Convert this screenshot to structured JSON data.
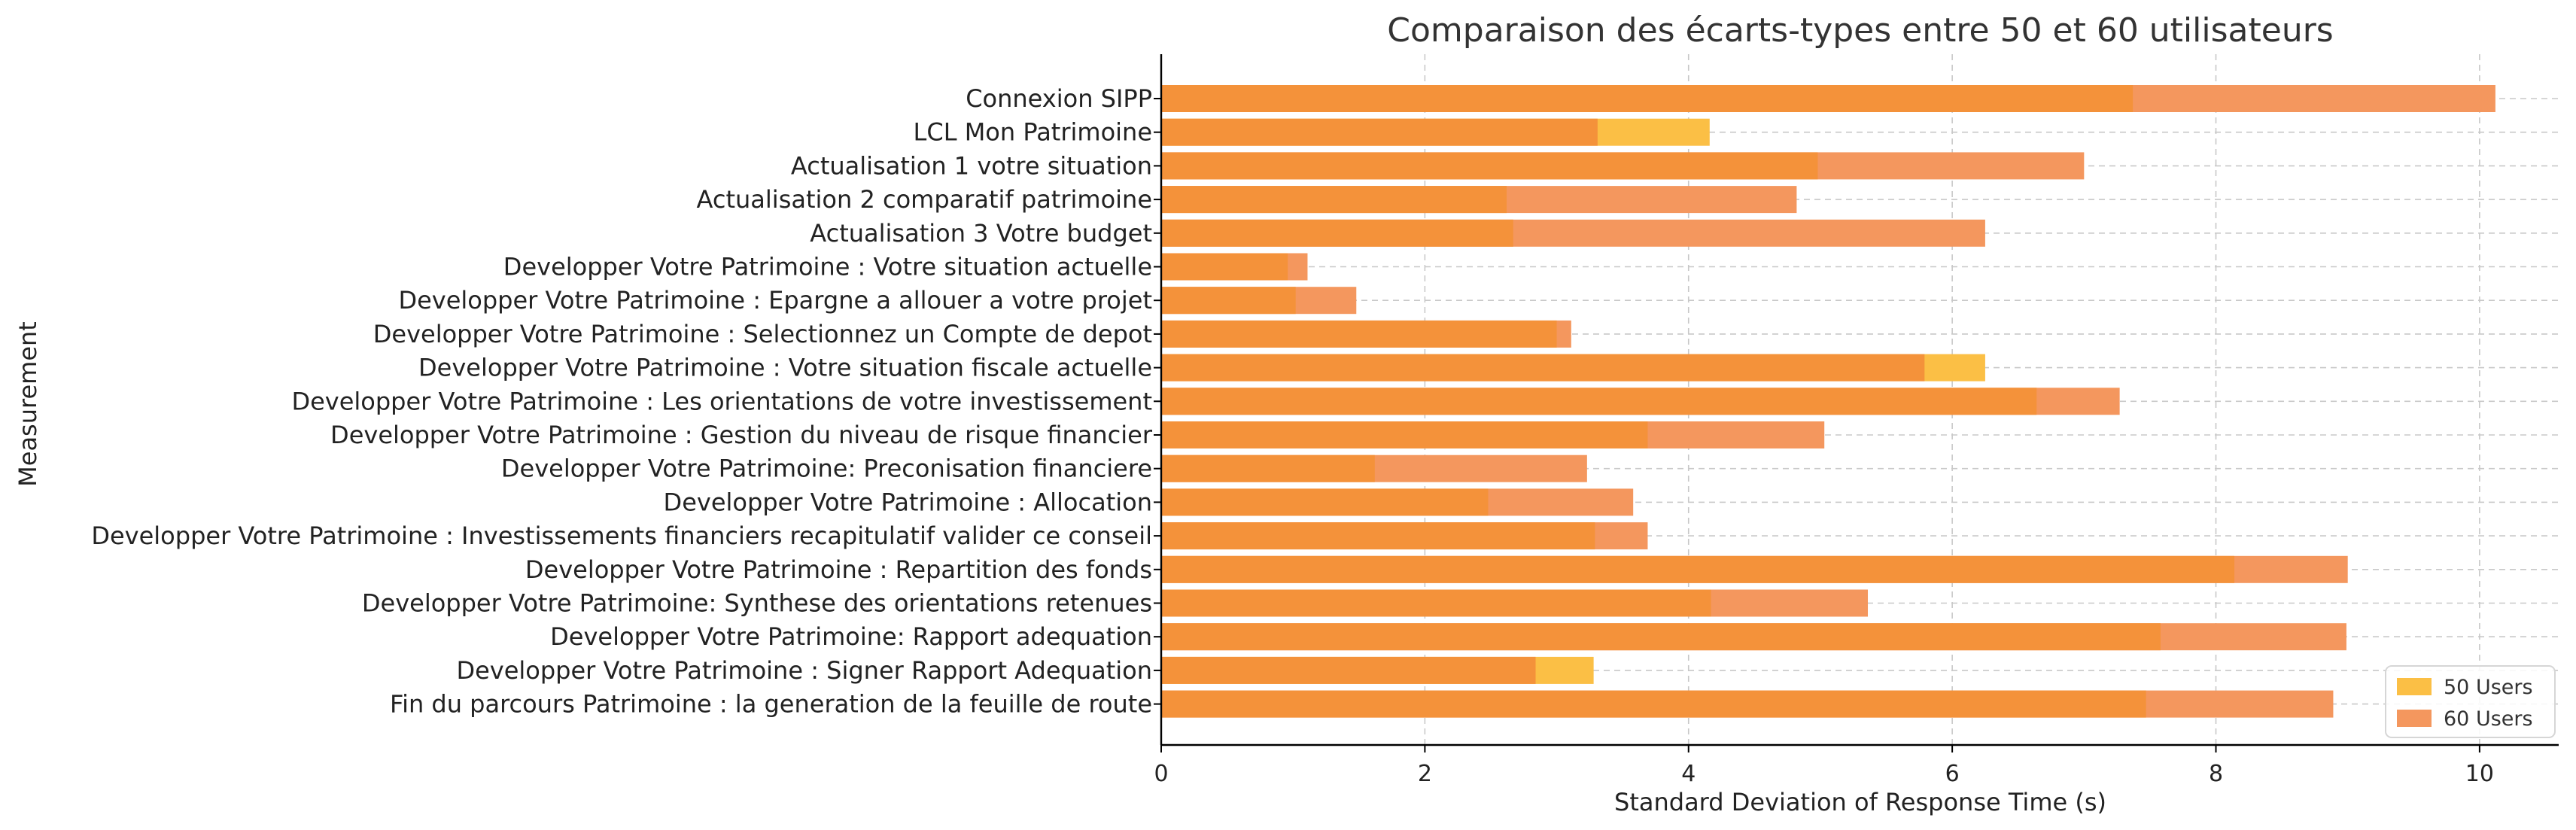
{
  "chart_data": {
    "type": "bar",
    "orientation": "horizontal",
    "title": "Comparaison des écarts-types entre 50 et 60 utilisateurs",
    "xlabel": "Standard Deviation of Response Time (s)",
    "ylabel": "Measurement",
    "xlim": [
      0,
      10.6
    ],
    "xticks": [
      "0",
      "2",
      "4",
      "6",
      "8",
      "10"
    ],
    "grid": true,
    "legend_position": "bottom-right",
    "categories": [
      "Connexion SIPP",
      "LCL Mon Patrimoine",
      "Actualisation 1 votre situation",
      "Actualisation 2 comparatif patrimoine",
      "Actualisation 3 Votre budget",
      "Developper Votre Patrimoine : Votre situation actuelle",
      "Developper Votre Patrimoine : Epargne a allouer a votre projet",
      "Developper Votre Patrimoine : Selectionnez un Compte de depot",
      "Developper Votre Patrimoine : Votre situation fiscale actuelle",
      "Developper Votre Patrimoine : Les orientations de votre investissement",
      "Developper Votre Patrimoine : Gestion du niveau de risque financier",
      "Developper Votre Patrimoine: Preconisation financiere",
      "Developper Votre Patrimoine : Allocation",
      "Developper Votre Patrimoine : Investissements financiers recapitulatif valider ce conseil",
      "Developper Votre Patrimoine : Repartition des fonds",
      "Developper Votre Patrimoine: Synthese des orientations retenues",
      "Developper Votre Patrimoine: Rapport adequation",
      "Developper Votre Patrimoine : Signer Rapport Adequation",
      "Fin du parcours Patrimoine : la generation de la feuille de route"
    ],
    "series": [
      {
        "name": "50 Users",
        "color": "#fbbf45",
        "values": [
          7.37,
          4.16,
          4.98,
          2.62,
          2.67,
          0.96,
          1.02,
          3.0,
          6.25,
          6.64,
          3.69,
          1.62,
          2.48,
          3.29,
          8.14,
          4.17,
          7.58,
          3.28,
          7.47
        ]
      },
      {
        "name": "60 Users",
        "color": "#f4975e",
        "values": [
          10.12,
          3.31,
          7.0,
          4.82,
          6.25,
          1.11,
          1.48,
          3.11,
          5.79,
          7.27,
          5.03,
          3.23,
          3.58,
          3.69,
          9.0,
          5.36,
          8.99,
          2.84,
          8.89
        ]
      }
    ],
    "overlap_color": "#f4923a"
  }
}
